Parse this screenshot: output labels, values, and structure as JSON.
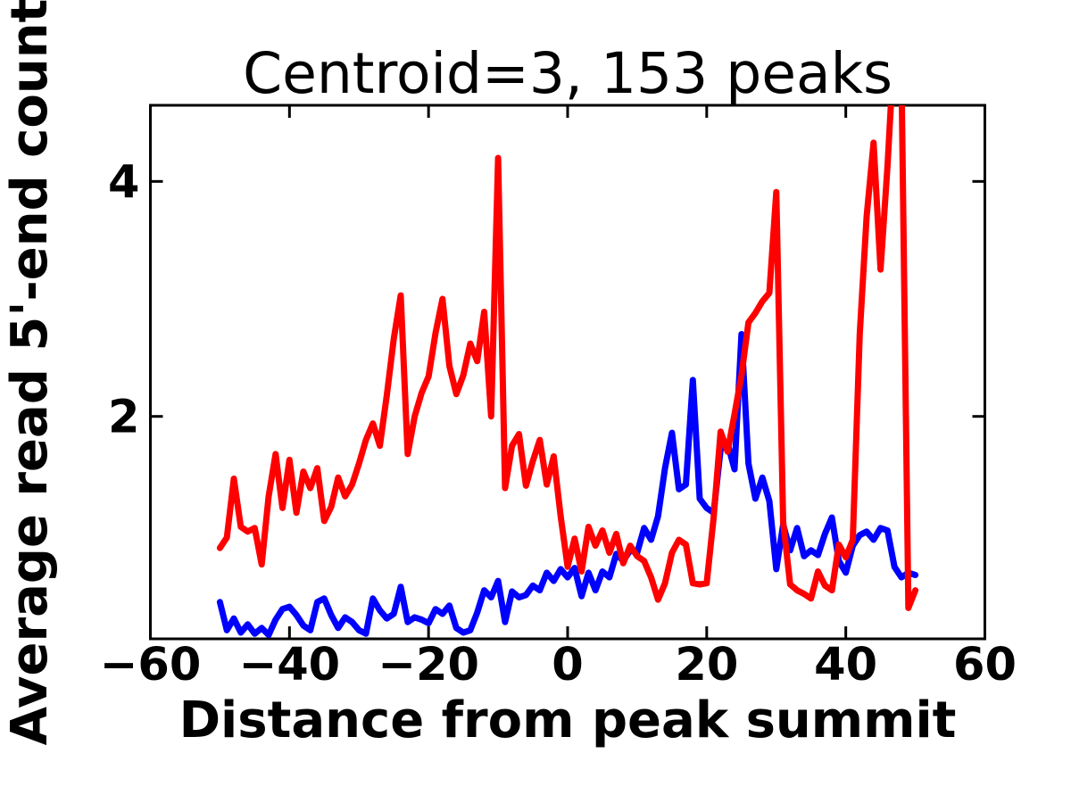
{
  "chart_data": {
    "type": "line",
    "title": "Centroid=3, 153 peaks",
    "xlabel": "Distance from peak summit",
    "ylabel": "Average read 5'-end count",
    "xlim": [
      -60,
      60
    ],
    "ylim": [
      0.107,
      4.648
    ],
    "grid": false,
    "legend": null,
    "xticks": [
      -60,
      -40,
      -20,
      0,
      20,
      40,
      60
    ],
    "xtick_labels": [
      "−60",
      "−40",
      "−20",
      "0",
      "20",
      "40",
      "60"
    ],
    "yticks": [
      2,
      4
    ],
    "ytick_labels": [
      "2",
      "4"
    ],
    "x_start": -50,
    "x_step": 1,
    "series": [
      {
        "name": "blue-profile",
        "color": "#0000ff",
        "values": [
          0.42,
          0.18,
          0.28,
          0.16,
          0.23,
          0.15,
          0.2,
          0.14,
          0.27,
          0.36,
          0.38,
          0.31,
          0.22,
          0.18,
          0.42,
          0.45,
          0.31,
          0.2,
          0.29,
          0.25,
          0.18,
          0.15,
          0.45,
          0.35,
          0.28,
          0.32,
          0.55,
          0.25,
          0.29,
          0.27,
          0.24,
          0.36,
          0.32,
          0.39,
          0.2,
          0.16,
          0.18,
          0.33,
          0.52,
          0.46,
          0.6,
          0.25,
          0.51,
          0.46,
          0.48,
          0.56,
          0.52,
          0.67,
          0.6,
          0.7,
          0.63,
          0.71,
          0.47,
          0.67,
          0.52,
          0.68,
          0.63,
          0.83,
          0.77,
          0.86,
          0.84,
          1.05,
          0.95,
          1.15,
          1.56,
          1.86,
          1.38,
          1.42,
          2.31,
          1.3,
          1.22,
          1.18,
          1.72,
          1.77,
          1.55,
          2.7,
          1.6,
          1.3,
          1.48,
          1.28,
          0.7,
          1.08,
          0.86,
          1.05,
          0.81,
          0.86,
          0.82,
          1.0,
          1.14,
          0.77,
          0.67,
          0.9,
          0.99,
          1.02,
          0.95,
          1.05,
          1.03,
          0.72,
          0.63,
          0.67,
          0.65
        ]
      },
      {
        "name": "red-profile",
        "color": "#ff0000",
        "values": [
          0.88,
          0.97,
          1.47,
          1.06,
          1.02,
          1.05,
          0.74,
          1.32,
          1.68,
          1.22,
          1.63,
          1.18,
          1.53,
          1.39,
          1.56,
          1.11,
          1.23,
          1.48,
          1.32,
          1.42,
          1.6,
          1.8,
          1.94,
          1.75,
          2.18,
          2.66,
          3.03,
          1.68,
          2.0,
          2.2,
          2.34,
          2.71,
          3.0,
          2.43,
          2.19,
          2.35,
          2.62,
          2.47,
          2.89,
          2.0,
          4.2,
          1.39,
          1.75,
          1.85,
          1.41,
          1.62,
          1.8,
          1.42,
          1.66,
          1.15,
          0.72,
          0.96,
          0.68,
          1.06,
          0.9,
          1.03,
          0.84,
          1.0,
          0.75,
          0.9,
          0.81,
          0.77,
          0.63,
          0.44,
          0.58,
          0.84,
          0.95,
          0.91,
          0.58,
          0.57,
          0.58,
          1.14,
          1.87,
          1.7,
          2.02,
          2.35,
          2.8,
          2.88,
          2.98,
          3.05,
          3.91,
          1.1,
          0.57,
          0.52,
          0.49,
          0.45,
          0.68,
          0.56,
          0.52,
          0.91,
          0.8,
          0.95,
          2.7,
          3.7,
          4.33,
          3.25,
          4.13,
          5.2,
          4.95,
          0.37,
          0.52
        ]
      }
    ]
  }
}
